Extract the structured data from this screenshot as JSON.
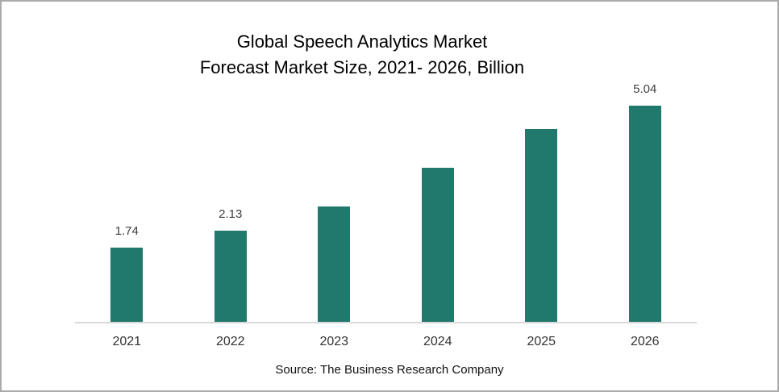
{
  "title": {
    "line1": "Global Speech Analytics Market",
    "line2": "Forecast Market Size, 2021- 2026, Billion"
  },
  "source": "Source: The Business Research Company",
  "chart_data": {
    "type": "bar",
    "title": "Global Speech Analytics Market Forecast Market Size, 2021- 2026, Billion",
    "categories": [
      "2021",
      "2022",
      "2023",
      "2024",
      "2025",
      "2026"
    ],
    "values": [
      1.74,
      2.13,
      2.7,
      3.6,
      4.5,
      5.04
    ],
    "data_labels": [
      "1.74",
      "2.13",
      null,
      null,
      null,
      "5.04"
    ],
    "xlabel": "",
    "ylabel": "",
    "ylim": [
      0,
      5.62
    ],
    "grid": false,
    "legend": false,
    "bar_color": "#21796e",
    "axis_line_color": "#d9d9d9",
    "label_color": "#404040",
    "tick_label_color": "#333333"
  }
}
